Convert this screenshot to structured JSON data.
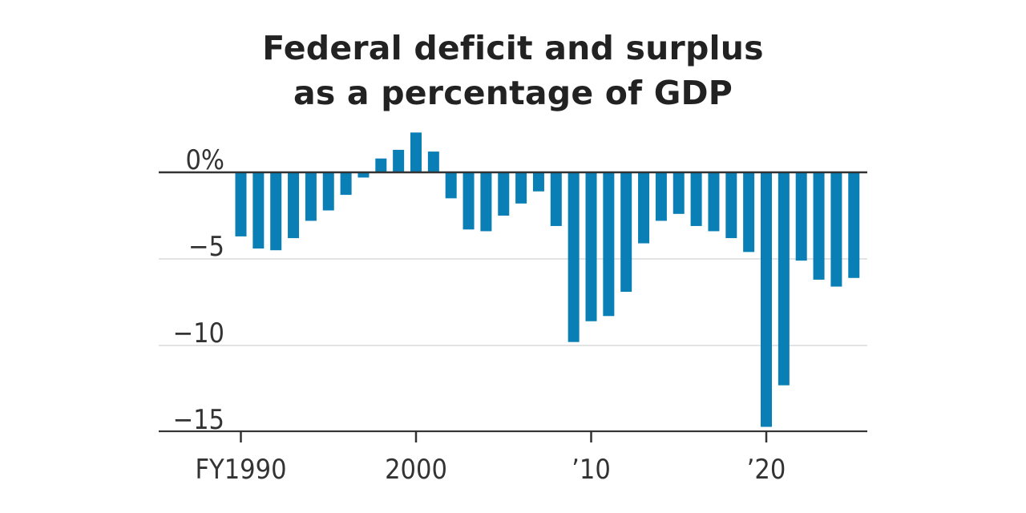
{
  "title_line1": "Federal deficit and surplus",
  "title_line2": "as a percentage of GDP",
  "colors": {
    "bar": "#0a7fb5",
    "zero_line": "#333333",
    "grid": "#e3e3e3",
    "axis": "#333333",
    "text": "#222222"
  },
  "chart_data": {
    "type": "bar",
    "title": "Federal deficit and surplus as a percentage of GDP",
    "x": [
      1990,
      1991,
      1992,
      1993,
      1994,
      1995,
      1996,
      1997,
      1998,
      1999,
      2000,
      2001,
      2002,
      2003,
      2004,
      2005,
      2006,
      2007,
      2008,
      2009,
      2010,
      2011,
      2012,
      2013,
      2014,
      2015,
      2016,
      2017,
      2018,
      2019,
      2020,
      2021,
      2022,
      2023,
      2024,
      2025
    ],
    "values": [
      -3.7,
      -4.4,
      -4.5,
      -3.8,
      -2.8,
      -2.2,
      -1.3,
      -0.3,
      0.8,
      1.3,
      2.3,
      1.2,
      -1.5,
      -3.3,
      -3.4,
      -2.5,
      -1.8,
      -1.1,
      -3.1,
      -9.8,
      -8.6,
      -8.3,
      -6.9,
      -4.1,
      -2.8,
      -2.4,
      -3.1,
      -3.4,
      -3.8,
      -4.6,
      -14.7,
      -12.3,
      -5.1,
      -6.2,
      -6.6,
      -6.1
    ],
    "ylim": [
      -15,
      2.5
    ],
    "y_ticks": [
      0,
      -5,
      -10,
      -15
    ],
    "y_tick_labels": [
      "0%",
      "−5",
      "−10",
      "−15"
    ],
    "x_ticks": [
      1990,
      2000,
      2010,
      2020
    ],
    "x_tick_labels": [
      "FY1990",
      "2000",
      "’10",
      "’20"
    ],
    "grid": true,
    "legend": "none"
  }
}
